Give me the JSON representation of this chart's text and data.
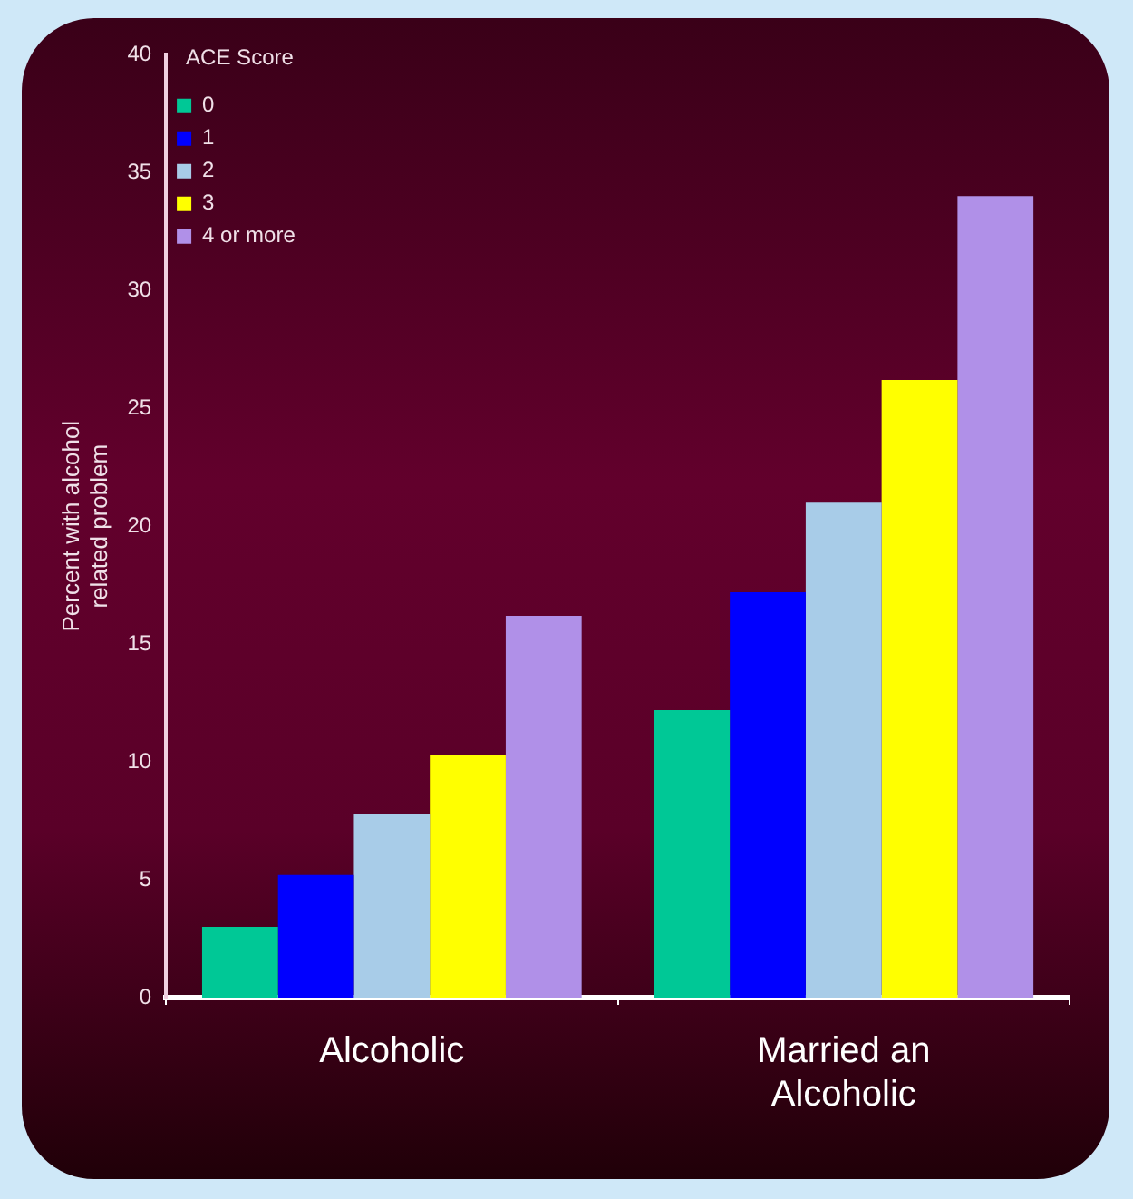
{
  "chart_data": {
    "type": "bar",
    "ylabel": "Percent with alcohol related problem",
    "legend_title": "ACE Score",
    "categories": [
      "Alcoholic",
      "Married an Alcoholic"
    ],
    "series": [
      {
        "name": "0",
        "color": "#00c896",
        "values": [
          3,
          12.2
        ]
      },
      {
        "name": "1",
        "color": "#0000ff",
        "values": [
          5.2,
          17.2
        ]
      },
      {
        "name": "2",
        "color": "#a8cce8",
        "values": [
          7.8,
          21
        ]
      },
      {
        "name": "3",
        "color": "#ffff00",
        "values": [
          10.3,
          26.2
        ]
      },
      {
        "name": "4 or more",
        "color": "#b090e8",
        "values": [
          16.2,
          34
        ]
      }
    ],
    "ylim": [
      0,
      40
    ],
    "yticks": [
      0,
      5,
      10,
      15,
      20,
      25,
      30,
      35,
      40
    ],
    "grid": false,
    "legend": "top left"
  }
}
